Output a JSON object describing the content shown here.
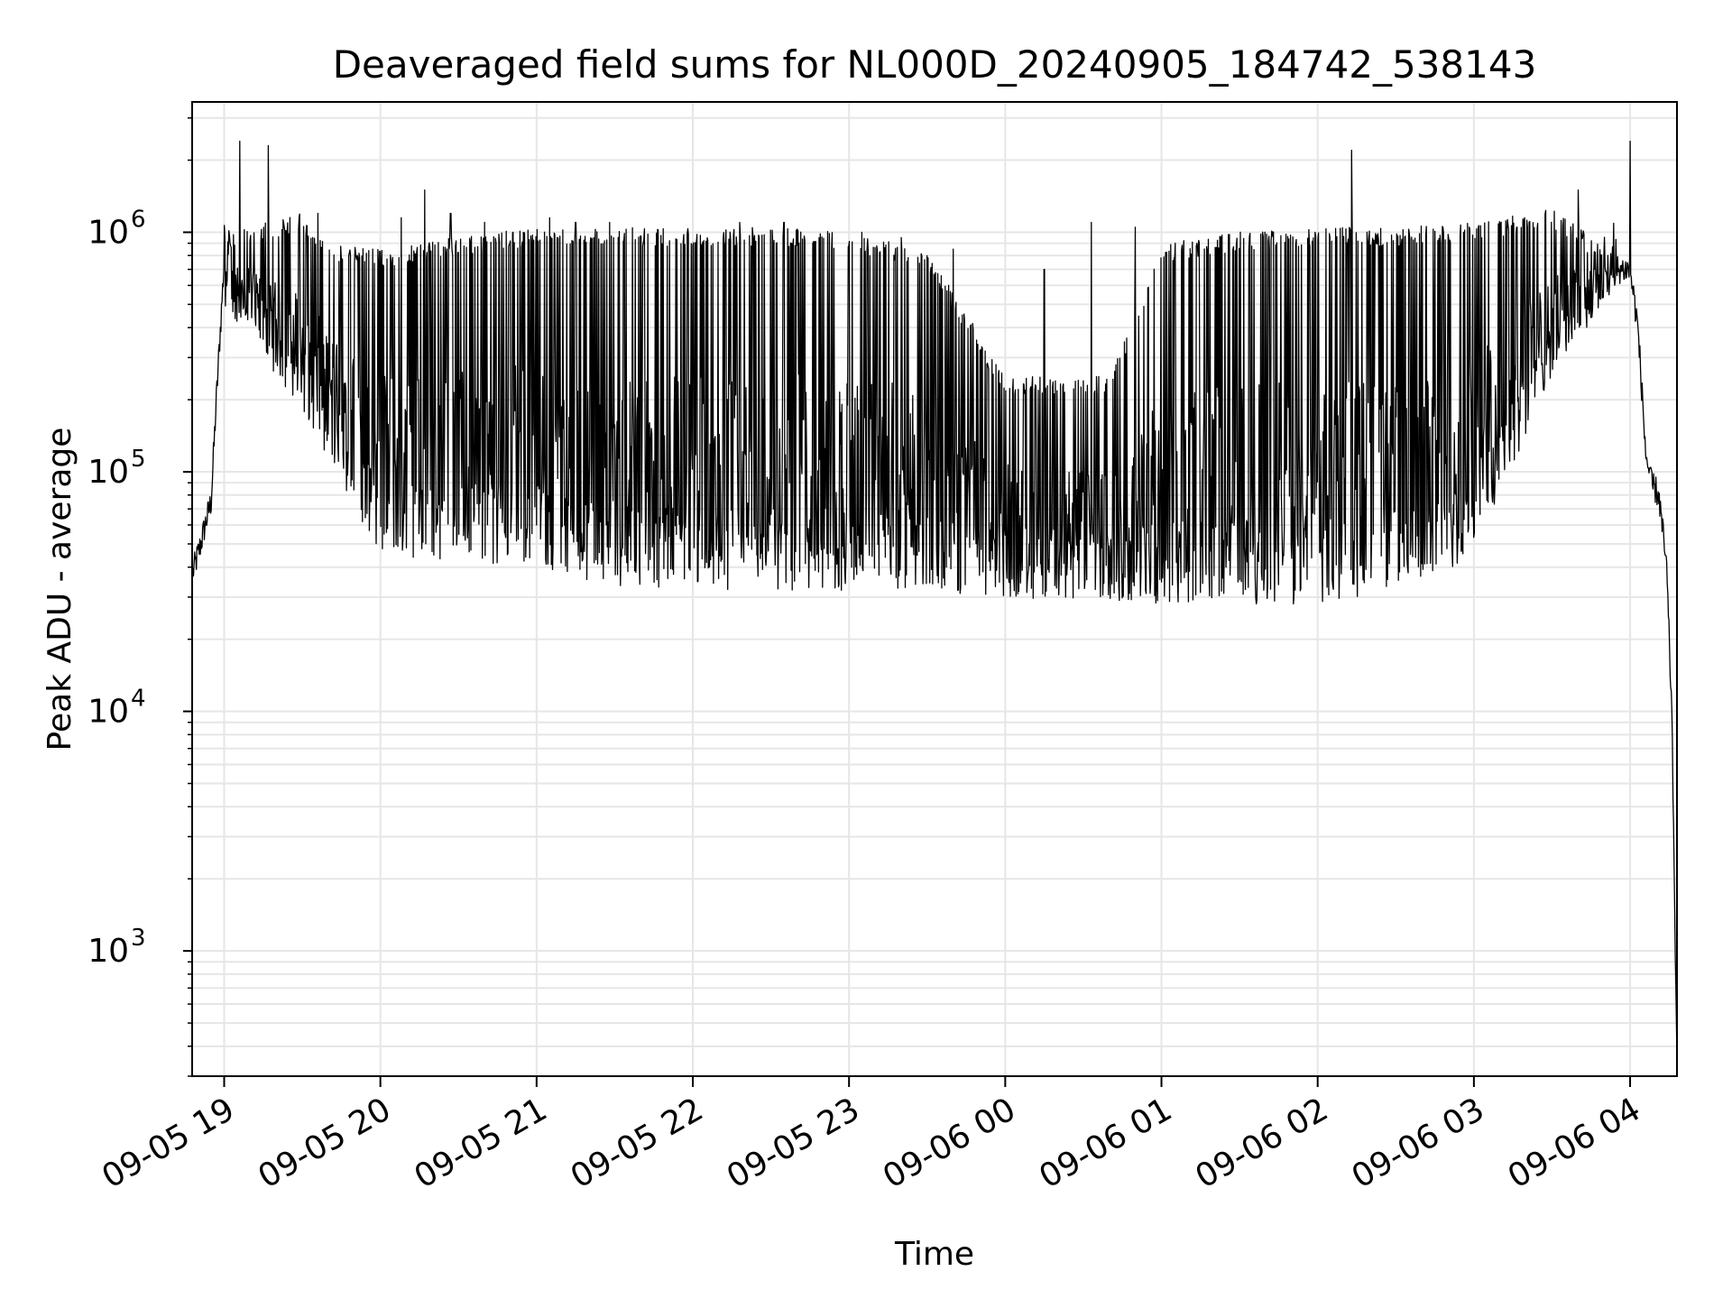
{
  "chart_data": {
    "type": "line",
    "title": "Deaveraged field sums for NL000D_20240905_184742_538143",
    "xlabel": "Time",
    "ylabel": "Peak ADU - average",
    "x_scale": "time",
    "y_scale": "log",
    "xlim": [
      "2024-09-05 18:47:42",
      "2024-09-06 04:18:00"
    ],
    "ylim": [
      300,
      3500000
    ],
    "x_ticks": [
      {
        "t": "2024-09-05 19:00",
        "label": "09-05 19"
      },
      {
        "t": "2024-09-05 20:00",
        "label": "09-05 20"
      },
      {
        "t": "2024-09-05 21:00",
        "label": "09-05 21"
      },
      {
        "t": "2024-09-05 22:00",
        "label": "09-05 22"
      },
      {
        "t": "2024-09-05 23:00",
        "label": "09-05 23"
      },
      {
        "t": "2024-09-06 00:00",
        "label": "09-06 00"
      },
      {
        "t": "2024-09-06 01:00",
        "label": "09-06 01"
      },
      {
        "t": "2024-09-06 02:00",
        "label": "09-06 02"
      },
      {
        "t": "2024-09-06 03:00",
        "label": "09-06 03"
      },
      {
        "t": "2024-09-06 04:00",
        "label": "09-06 04"
      }
    ],
    "y_ticks": [
      {
        "v": 1000,
        "base": "10",
        "exp": "3"
      },
      {
        "v": 10000,
        "base": "10",
        "exp": "4"
      },
      {
        "v": 100000,
        "base": "10",
        "exp": "5"
      },
      {
        "v": 1000000,
        "base": "10",
        "exp": "6"
      }
    ],
    "grid": true,
    "line_color": "#000000",
    "grid_color": "#e6e6e6",
    "series": [
      {
        "baseline": {
          "x": [
            "2024-09-05 18:48",
            "2024-09-05 18:51",
            "2024-09-05 18:53",
            "2024-09-05 18:55",
            "2024-09-05 18:57",
            "2024-09-05 19:00",
            "2024-09-05 19:10",
            "2024-09-05 19:20",
            "2024-09-05 19:30",
            "2024-09-05 19:40",
            "2024-09-05 19:50",
            "2024-09-05 20:00",
            "2024-09-05 20:30",
            "2024-09-05 21:00",
            "2024-09-05 21:30",
            "2024-09-05 22:00",
            "2024-09-05 22:30",
            "2024-09-05 23:00",
            "2024-09-05 23:30",
            "2024-09-06 00:00",
            "2024-09-06 00:30",
            "2024-09-06 01:00",
            "2024-09-06 01:30",
            "2024-09-06 02:00",
            "2024-09-06 02:30",
            "2024-09-06 02:50",
            "2024-09-06 03:00",
            "2024-09-06 03:15",
            "2024-09-06 03:30",
            "2024-09-06 03:45",
            "2024-09-06 03:55",
            "2024-09-06 04:00",
            "2024-09-06 04:03",
            "2024-09-06 04:06",
            "2024-09-06 04:08",
            "2024-09-06 04:11",
            "2024-09-06 04:14",
            "2024-09-06 04:16",
            "2024-09-06 04:17",
            "2024-09-06 04:18"
          ],
          "y": [
            38000,
            50000,
            62000,
            75000,
            200000,
            750000,
            600000,
            700000,
            400000,
            250000,
            120000,
            70000,
            55000,
            55000,
            50000,
            50000,
            52000,
            50000,
            48000,
            45000,
            42000,
            40000,
            40000,
            40000,
            42000,
            50000,
            80000,
            150000,
            300000,
            550000,
            700000,
            700000,
            400000,
            120000,
            90000,
            80000,
            40000,
            10000,
            2000,
            300
          ]
        },
        "band_top": {
          "x": [
            "2024-09-05 19:00",
            "2024-09-05 19:30",
            "2024-09-05 19:40",
            "2024-09-05 20:00",
            "2024-09-05 20:40",
            "2024-09-05 21:00",
            "2024-09-05 21:30",
            "2024-09-05 22:00",
            "2024-09-05 22:30",
            "2024-09-05 23:00",
            "2024-09-05 23:30",
            "2024-09-06 00:00",
            "2024-09-06 00:40",
            "2024-09-06 01:00",
            "2024-09-06 01:30",
            "2024-09-06 02:00",
            "2024-09-06 02:30",
            "2024-09-06 03:00",
            "2024-09-06 03:30",
            "2024-09-06 03:55"
          ],
          "y": [
            1000000,
            1200000,
            900000,
            850000,
            1000000,
            1050000,
            1050000,
            1050000,
            1050000,
            1000000,
            850000,
            250000,
            250000,
            900000,
            1000000,
            1050000,
            1050000,
            1100000,
            1250000,
            850000
          ]
        },
        "band_bottom": {
          "x": [
            "2024-09-05 19:00",
            "2024-09-05 19:30",
            "2024-09-05 20:00",
            "2024-09-05 21:00",
            "2024-09-05 21:30",
            "2024-09-05 22:00",
            "2024-09-05 23:00",
            "2024-09-06 00:00",
            "2024-09-06 01:00",
            "2024-09-06 02:00",
            "2024-09-06 02:50",
            "2024-09-06 03:10",
            "2024-09-06 03:30",
            "2024-09-06 03:55"
          ],
          "y": [
            500000,
            180000,
            45000,
            40000,
            33000,
            32000,
            32000,
            30000,
            28000,
            28000,
            35000,
            80000,
            250000,
            600000
          ]
        },
        "spikes": [
          {
            "x": "2024-09-05 19:06",
            "y": 2400000
          },
          {
            "x": "2024-09-05 19:17",
            "y": 2300000
          },
          {
            "x": "2024-09-05 19:36",
            "y": 1200000
          },
          {
            "x": "2024-09-05 20:08",
            "y": 1150000
          },
          {
            "x": "2024-09-05 20:17",
            "y": 1500000
          },
          {
            "x": "2024-09-05 20:27",
            "y": 1200000
          },
          {
            "x": "2024-09-05 20:40",
            "y": 1100000
          },
          {
            "x": "2024-09-05 20:55",
            "y": 1000000
          },
          {
            "x": "2024-09-05 21:05",
            "y": 1150000
          },
          {
            "x": "2024-09-05 21:15",
            "y": 1100000
          },
          {
            "x": "2024-09-05 21:28",
            "y": 1100000
          },
          {
            "x": "2024-09-05 22:18",
            "y": 1100000
          },
          {
            "x": "2024-09-05 22:35",
            "y": 1100000
          },
          {
            "x": "2024-09-05 23:05",
            "y": 1000000
          },
          {
            "x": "2024-09-05 23:20",
            "y": 950000
          },
          {
            "x": "2024-09-05 23:40",
            "y": 850000
          },
          {
            "x": "2024-09-06 00:15",
            "y": 700000
          },
          {
            "x": "2024-09-06 00:33",
            "y": 1100000
          },
          {
            "x": "2024-09-06 00:50",
            "y": 1050000
          },
          {
            "x": "2024-09-06 02:13",
            "y": 2200000
          },
          {
            "x": "2024-09-06 03:40",
            "y": 1500000
          },
          {
            "x": "2024-09-06 04:00",
            "y": 2400000
          }
        ]
      }
    ]
  }
}
